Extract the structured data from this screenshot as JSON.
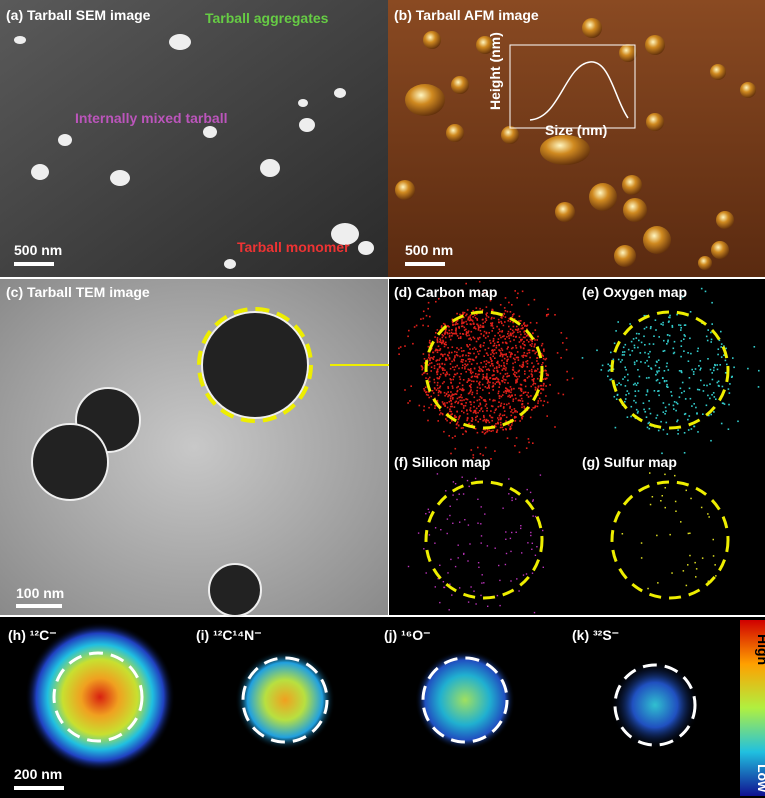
{
  "panel_a": {
    "title": "(a) Tarball SEM image",
    "aggregates": "Tarball aggregates",
    "mixed": "Internally mixed tarball",
    "monomer": "Tarball monomer",
    "scale": "500 nm"
  },
  "panel_b": {
    "title": "(b) Tarball AFM image",
    "y_label": "Height (nm)",
    "x_label": "Size (nm)",
    "scale": "500 nm"
  },
  "panel_c": {
    "title": "(c) Tarball TEM image",
    "scale": "100 nm"
  },
  "maps": {
    "carbon": "(d) Carbon map",
    "oxygen": "(e) Oxygen map",
    "silicon": "(f) Silicon map",
    "sulfur": "(g) Sulfur map"
  },
  "sims": {
    "c12": "(h) ¹²C⁻",
    "cn": "(i) ¹²C¹⁴N⁻",
    "o16": "(j) ¹⁶O⁻",
    "s32": "(k) ³²S⁻",
    "scale": "200 nm",
    "high": "High",
    "low": "Low"
  }
}
